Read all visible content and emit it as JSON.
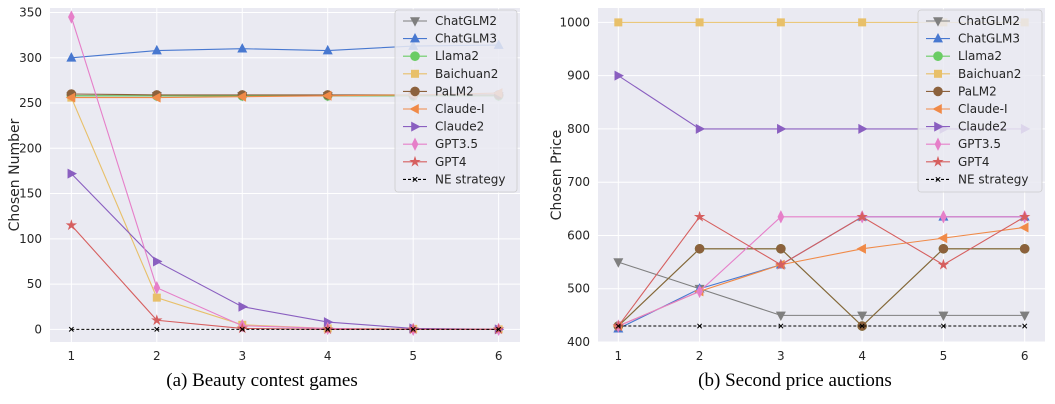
{
  "captions": [
    "(a) Beauty contest games",
    "(b) Second price auctions"
  ],
  "legend_labels": [
    "ChatGLM2",
    "ChatGLM3",
    "Llama2",
    "Baichuan2",
    "PaLM2",
    "Claude-I",
    "Claude2",
    "GPT3.5",
    "GPT4",
    "NE strategy"
  ],
  "colors": {
    "ChatGLM2": "#7f7f7f",
    "ChatGLM3": "#4878d0",
    "Llama2": "#6acc64",
    "Baichuan2": "#e8c06a",
    "PaLM2": "#8c613c",
    "Claude-I": "#f08a48",
    "Claude2": "#8a5fc0",
    "GPT3.5": "#e67fc9",
    "GPT4": "#d65f5f",
    "NE strategy": "#000000"
  },
  "markers": {
    "ChatGLM2": "triangle-down",
    "ChatGLM3": "triangle-up",
    "Llama2": "circle",
    "Baichuan2": "square",
    "PaLM2": "circle",
    "Claude-I": "triangle-left",
    "Claude2": "triangle-right",
    "GPT3.5": "diamond",
    "GPT4": "star",
    "NE strategy": "x"
  },
  "chart_data": [
    {
      "type": "line",
      "title": "",
      "xlabel": "",
      "ylabel": "Chosen Number",
      "x": [
        1,
        2,
        3,
        4,
        5,
        6
      ],
      "xlim": [
        0.75,
        6.25
      ],
      "ylim": [
        -14,
        355
      ],
      "yticks": [
        0,
        50,
        100,
        150,
        200,
        250,
        300,
        350
      ],
      "grid": true,
      "legend": "top-right",
      "series": [
        {
          "name": "ChatGLM2",
          "values": [
            258,
            258,
            258,
            258,
            258,
            258
          ]
        },
        {
          "name": "ChatGLM3",
          "values": [
            300,
            308,
            310,
            308,
            313,
            314
          ]
        },
        {
          "name": "Llama2",
          "values": [
            258,
            258,
            258,
            258,
            258,
            258
          ]
        },
        {
          "name": "Baichuan2",
          "values": [
            256,
            35,
            5,
            1,
            0.5,
            0
          ]
        },
        {
          "name": "PaLM2",
          "values": [
            260,
            259,
            259,
            259,
            259,
            259
          ]
        },
        {
          "name": "Claude-I",
          "values": [
            256,
            256,
            257,
            258,
            259,
            261
          ]
        },
        {
          "name": "Claude2",
          "values": [
            172,
            75,
            25,
            8,
            1,
            0
          ]
        },
        {
          "name": "GPT3.5",
          "values": [
            345,
            46,
            4,
            1,
            0,
            0
          ]
        },
        {
          "name": "GPT4",
          "values": [
            115,
            10,
            1,
            0,
            0,
            0
          ]
        },
        {
          "name": "NE strategy",
          "values": [
            0,
            0,
            0,
            0,
            0,
            0
          ]
        }
      ]
    },
    {
      "type": "line",
      "title": "",
      "xlabel": "",
      "ylabel": "Chosen Price",
      "x": [
        1,
        2,
        3,
        4,
        5,
        6
      ],
      "xlim": [
        0.75,
        6.25
      ],
      "ylim": [
        400,
        1027
      ],
      "yticks": [
        400,
        500,
        600,
        700,
        800,
        900,
        1000
      ],
      "grid": true,
      "legend": "top-right",
      "series": [
        {
          "name": "ChatGLM2",
          "values": [
            550,
            500,
            450,
            450,
            450,
            450
          ]
        },
        {
          "name": "ChatGLM3",
          "values": [
            425,
            500,
            545,
            635,
            635,
            635
          ]
        },
        {
          "name": "Llama2",
          "values": [
            430,
            575,
            575,
            430,
            575,
            575
          ]
        },
        {
          "name": "Baichuan2",
          "values": [
            1000,
            1000,
            1000,
            1000,
            1000,
            1000
          ]
        },
        {
          "name": "PaLM2",
          "values": [
            430,
            575,
            575,
            430,
            575,
            575
          ]
        },
        {
          "name": "Claude-I",
          "values": [
            430,
            495,
            545,
            575,
            595,
            615
          ]
        },
        {
          "name": "Claude2",
          "values": [
            900,
            800,
            800,
            800,
            800,
            800
          ]
        },
        {
          "name": "GPT3.5",
          "values": [
            430,
            495,
            635,
            635,
            635,
            635
          ]
        },
        {
          "name": "GPT4",
          "values": [
            430,
            635,
            545,
            635,
            545,
            635
          ]
        },
        {
          "name": "NE strategy",
          "values": [
            430,
            430,
            430,
            430,
            430,
            430
          ]
        }
      ]
    }
  ]
}
